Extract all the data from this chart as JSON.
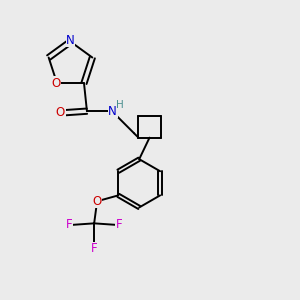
{
  "bg_color": "#ebebeb",
  "atom_colors": {
    "C": "#000000",
    "N": "#0000cc",
    "O": "#cc0000",
    "F": "#cc00cc",
    "H": "#4a8f8f"
  },
  "bond_color": "#000000",
  "figsize": [
    3.0,
    3.0
  ],
  "dpi": 100
}
